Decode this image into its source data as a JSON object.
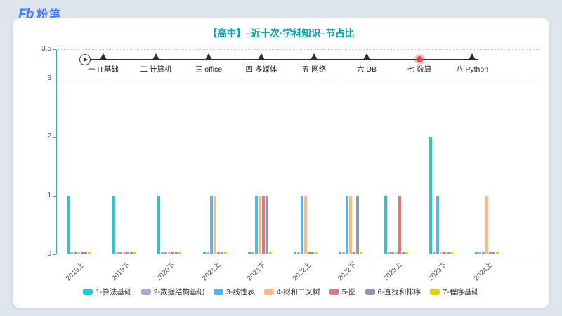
{
  "background": "#dfe5ec",
  "logo": {
    "mark": "Fb",
    "name": "粉笔",
    "color": "#3D7EFF"
  },
  "title": {
    "text": "【高中】–近十次·学科知识–节占比",
    "color": "#00A3B5"
  },
  "timeline": {
    "current_color": "#d9534f",
    "current_ring": "rgba(217,83,79,0.35)",
    "nodes": [
      {
        "label": "一 IT基础",
        "current": false
      },
      {
        "label": "二 计算机",
        "current": false
      },
      {
        "label": "三 office",
        "current": false
      },
      {
        "label": "四 多媒体",
        "current": false
      },
      {
        "label": "五 网络",
        "current": false
      },
      {
        "label": "六 DB",
        "current": false
      },
      {
        "label": "七 数算",
        "current": true
      },
      {
        "label": "八 Python",
        "current": false
      }
    ]
  },
  "chart_data": {
    "type": "bar",
    "title": "【高中】–近十次·学科知识–节占比",
    "xlabel": "",
    "ylabel": "",
    "ylim": [
      0,
      3.5
    ],
    "yticks": [
      0,
      1,
      2,
      3,
      3.5
    ],
    "grid_dotted_at": [
      3,
      3.5
    ],
    "legend_position": "bottom",
    "axis_color": "#35b5a9",
    "categories": [
      "2019上",
      "2019下",
      "2020下",
      "2021上",
      "2021下",
      "2022上",
      "2022下",
      "2023上",
      "2023下",
      "2024上"
    ],
    "series": [
      {
        "name": "1-算法基础",
        "color": "#2ec7c9",
        "values": [
          1,
          1,
          1,
          0,
          0,
          0,
          0,
          1,
          2,
          0
        ]
      },
      {
        "name": "2-数据结构基础",
        "color": "#b6a2de",
        "values": [
          0,
          0,
          0,
          0,
          0,
          0,
          0,
          0,
          0,
          0
        ]
      },
      {
        "name": "3-线性表",
        "color": "#5ab1ef",
        "values": [
          0,
          0,
          0,
          1,
          1,
          1,
          1,
          0,
          1,
          0
        ]
      },
      {
        "name": "4-树和二叉树",
        "color": "#ffb980",
        "values": [
          0,
          0,
          0,
          1,
          1,
          1,
          1,
          0,
          0,
          1
        ]
      },
      {
        "name": "5-图",
        "color": "#d87a80",
        "values": [
          0,
          0,
          0,
          0,
          1,
          0,
          0,
          1,
          0,
          0
        ]
      },
      {
        "name": "6-查找和排序",
        "color": "#8d98b3",
        "values": [
          0,
          0,
          0,
          0,
          1,
          0,
          1,
          0,
          0,
          0
        ]
      },
      {
        "name": "7-程序基础",
        "color": "#e5cf0d",
        "values": [
          0,
          0,
          0,
          0,
          0,
          0,
          0,
          0,
          0,
          0
        ]
      }
    ]
  }
}
